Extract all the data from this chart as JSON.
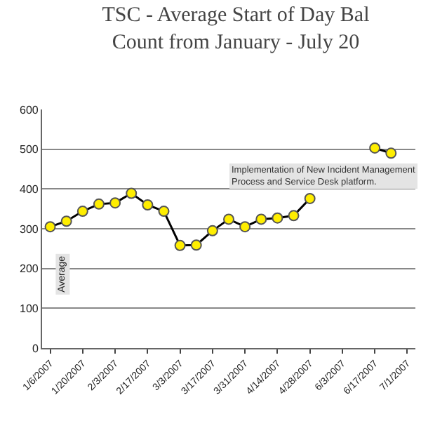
{
  "chart_data": {
    "type": "line",
    "title": "TSC - Average Start of Day Bal\nCount from January - July 20",
    "categories": [
      "1/6/2007",
      null,
      "1/20/2007",
      null,
      "2/3/2007",
      null,
      "2/17/2007",
      null,
      "3/3/2007",
      null,
      "3/17/2007",
      null,
      "3/31/2007",
      null,
      "4/14/2007",
      null,
      "4/28/2007",
      null,
      "6/3/2007",
      null,
      "6/17/2007",
      null,
      "7/1/2007"
    ],
    "series": [
      {
        "name": "Average",
        "color": "#000000",
        "values": [
          305,
          319,
          344,
          362,
          365,
          389,
          360,
          344,
          258,
          259,
          295,
          324,
          305,
          324,
          327,
          333,
          376,
          null,
          null,
          null,
          503,
          490,
          null
        ]
      }
    ],
    "ylim": [
      0,
      600
    ],
    "yticks": [
      0,
      100,
      200,
      300,
      400,
      500,
      600
    ],
    "grid": "y",
    "marker": "circle",
    "line_style": "solid",
    "legend": "left",
    "annotations": [
      "Implementation of New Incident Management\nProcess and Service Desk platform."
    ]
  }
}
